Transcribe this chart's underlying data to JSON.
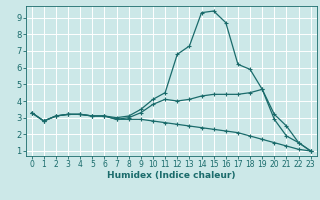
{
  "title": "",
  "xlabel": "Humidex (Indice chaleur)",
  "ylabel": "",
  "background_color": "#cce8e8",
  "grid_color": "#ffffff",
  "line_color": "#1a6b6b",
  "xlim": [
    -0.5,
    23.5
  ],
  "ylim": [
    0.7,
    9.7
  ],
  "x": [
    0,
    1,
    2,
    3,
    4,
    5,
    6,
    7,
    8,
    9,
    10,
    11,
    12,
    13,
    14,
    15,
    16,
    17,
    18,
    19,
    20,
    21,
    22,
    23
  ],
  "line1": [
    3.3,
    2.8,
    3.1,
    3.2,
    3.2,
    3.1,
    3.1,
    3.0,
    3.1,
    3.5,
    4.1,
    4.5,
    6.8,
    7.3,
    9.3,
    9.4,
    8.7,
    6.2,
    5.9,
    4.7,
    2.9,
    1.9,
    1.5,
    1.0
  ],
  "line2": [
    3.3,
    2.8,
    3.1,
    3.2,
    3.2,
    3.1,
    3.1,
    2.9,
    3.0,
    3.3,
    3.8,
    4.1,
    4.0,
    4.1,
    4.3,
    4.4,
    4.4,
    4.4,
    4.5,
    4.7,
    3.2,
    2.5,
    1.5,
    1.0
  ],
  "line3": [
    3.3,
    2.8,
    3.1,
    3.2,
    3.2,
    3.1,
    3.1,
    2.9,
    2.9,
    2.9,
    2.8,
    2.7,
    2.6,
    2.5,
    2.4,
    2.3,
    2.2,
    2.1,
    1.9,
    1.7,
    1.5,
    1.3,
    1.1,
    1.0
  ],
  "xticks": [
    0,
    1,
    2,
    3,
    4,
    5,
    6,
    7,
    8,
    9,
    10,
    11,
    12,
    13,
    14,
    15,
    16,
    17,
    18,
    19,
    20,
    21,
    22,
    23
  ],
  "yticks": [
    1,
    2,
    3,
    4,
    5,
    6,
    7,
    8,
    9
  ],
  "xlabel_fontsize": 6.5,
  "tick_fontsize": 5.5,
  "linewidth": 0.9,
  "markersize": 3
}
